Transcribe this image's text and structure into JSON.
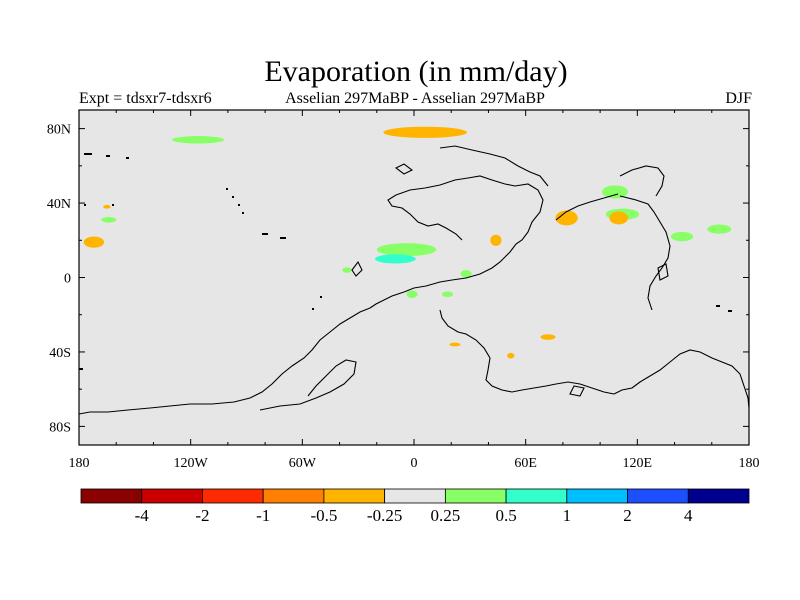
{
  "header": {
    "title": "Evaporation (in mm/day)",
    "left_label": "Expt = tdsxr7-tdsxr6",
    "center_label": "Asselian 297MaBP - Asselian 297MaBP",
    "right_label": "DJF"
  },
  "chart_data": {
    "type": "map",
    "projection": "cylindrical-equidistant",
    "lon_range": [
      -180,
      180
    ],
    "lat_range": [
      -90,
      90
    ],
    "x_ticks": [
      {
        "lon": -180,
        "label": "180"
      },
      {
        "lon": -120,
        "label": "120W"
      },
      {
        "lon": -60,
        "label": "60W"
      },
      {
        "lon": 0,
        "label": "0"
      },
      {
        "lon": 60,
        "label": "60E"
      },
      {
        "lon": 120,
        "label": "120E"
      },
      {
        "lon": 180,
        "label": "180"
      }
    ],
    "y_ticks": [
      {
        "lat": 80,
        "label": "80N"
      },
      {
        "lat": 40,
        "label": "40N"
      },
      {
        "lat": 0,
        "label": "0"
      },
      {
        "lat": -40,
        "label": "40S"
      },
      {
        "lat": -80,
        "label": "80S"
      }
    ],
    "colorbar": {
      "colors": [
        "#8b0000",
        "#cc0000",
        "#ff2a00",
        "#ff7f00",
        "#ffb400",
        "#e6e6e6",
        "#88ff66",
        "#33ffcc",
        "#00bfff",
        "#1e4fff",
        "#000090"
      ],
      "labels": [
        "-4",
        "-2",
        "-1",
        "-0.5",
        "-0.25",
        "0.25",
        "0.5",
        "1",
        "2",
        "4"
      ]
    },
    "background_color": "#e6e6e6",
    "anomaly_patches": [
      {
        "cls": "pos",
        "color": "#88ff66",
        "lon": -116,
        "lat": 74,
        "w": 28,
        "h": 4
      },
      {
        "cls": "neg",
        "color": "#ffb400",
        "lon": 6,
        "lat": 78,
        "w": 45,
        "h": 6
      },
      {
        "cls": "pos",
        "color": "#88ff66",
        "lon": 108,
        "lat": 46,
        "w": 14,
        "h": 7
      },
      {
        "cls": "pos",
        "color": "#88ff66",
        "lon": 112,
        "lat": 34,
        "w": 18,
        "h": 6
      },
      {
        "cls": "neg",
        "color": "#ffb400",
        "lon": 110,
        "lat": 32,
        "w": 10,
        "h": 7
      },
      {
        "cls": "neg",
        "color": "#ffb400",
        "lon": 82,
        "lat": 32,
        "w": 12,
        "h": 8
      },
      {
        "cls": "neg",
        "color": "#ffb400",
        "lon": 44,
        "lat": 20,
        "w": 6,
        "h": 6
      },
      {
        "cls": "pos",
        "color": "#88ff66",
        "lon": 144,
        "lat": 22,
        "w": 12,
        "h": 5
      },
      {
        "cls": "pos",
        "color": "#88ff66",
        "lon": 164,
        "lat": 26,
        "w": 13,
        "h": 5
      },
      {
        "cls": "neg",
        "color": "#ffb400",
        "lon": -172,
        "lat": 19,
        "w": 11,
        "h": 6
      },
      {
        "cls": "neg",
        "color": "#ffb400",
        "lon": -165,
        "lat": 38,
        "w": 4,
        "h": 2
      },
      {
        "cls": "pos",
        "color": "#88ff66",
        "lon": -164,
        "lat": 31,
        "w": 8,
        "h": 3
      },
      {
        "cls": "pos",
        "color": "#88ff66",
        "lon": -4,
        "lat": 15,
        "w": 32,
        "h": 7
      },
      {
        "cls": "cyan",
        "color": "#33ffcc",
        "lon": -10,
        "lat": 10,
        "w": 22,
        "h": 5
      },
      {
        "cls": "pos",
        "color": "#88ff66",
        "lon": 28,
        "lat": 2,
        "w": 6,
        "h": 4
      },
      {
        "cls": "pos",
        "color": "#88ff66",
        "lon": -36,
        "lat": 4,
        "w": 5,
        "h": 3
      },
      {
        "cls": "pos",
        "color": "#88ff66",
        "lon": -1,
        "lat": -9,
        "w": 6,
        "h": 4
      },
      {
        "cls": "pos",
        "color": "#88ff66",
        "lon": 18,
        "lat": -9,
        "w": 6,
        "h": 3
      },
      {
        "cls": "neg",
        "color": "#ffb400",
        "lon": 72,
        "lat": -32,
        "w": 8,
        "h": 3
      },
      {
        "cls": "neg",
        "color": "#ffb400",
        "lon": 22,
        "lat": -36,
        "w": 6,
        "h": 2
      },
      {
        "cls": "neg",
        "color": "#ffb400",
        "lon": 52,
        "lat": -42,
        "w": 4,
        "h": 3
      }
    ]
  }
}
